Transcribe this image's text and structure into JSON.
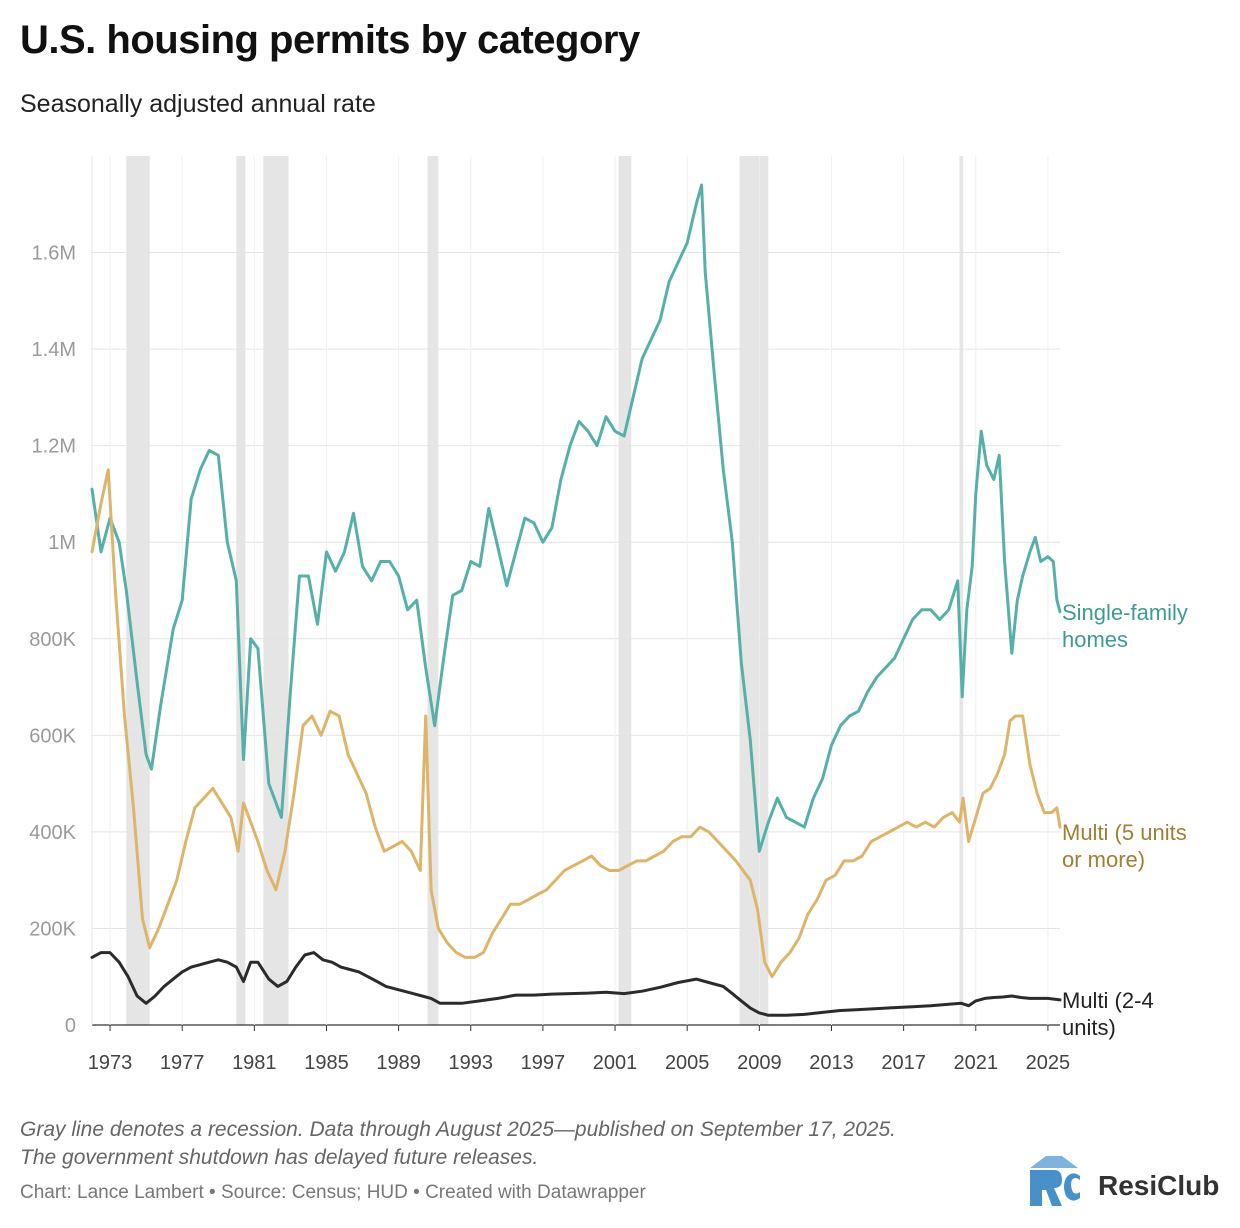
{
  "title": "U.S. housing permits by category",
  "subtitle": "Seasonally adjusted annual rate",
  "notes": [
    "Gray line denotes a recession. Data through August 2025—published on September 17, 2025.",
    "The government shutdown has delayed future releases."
  ],
  "credits": "Chart: Lance Lambert • Source: Census; HUD • Created with Datawrapper",
  "logo": {
    "text": "ResiClub",
    "icon": "resiclub-logo-icon",
    "color": "#4a90c8"
  },
  "colors": {
    "single": "#57b0a8",
    "multi5": "#dcb56b",
    "multi24": "#2b2b2b",
    "recession": "#e5e5e5",
    "grid": "#e4e4e4"
  },
  "chart_data": {
    "type": "line",
    "title": "U.S. housing permits by category",
    "subtitle": "Seasonally adjusted annual rate",
    "xlim": [
      1972,
      2025.67
    ],
    "ylim": [
      0,
      1800000
    ],
    "yticks": [
      0,
      200000,
      400000,
      600000,
      800000,
      1000000,
      1200000,
      1400000,
      1600000
    ],
    "ytick_labels": [
      "0",
      "200K",
      "400K",
      "600K",
      "800K",
      "1M",
      "1.2M",
      "1.4M",
      "1.6M"
    ],
    "xticks": [
      1973,
      1977,
      1981,
      1985,
      1989,
      1993,
      1997,
      2001,
      2005,
      2009,
      2013,
      2017,
      2021,
      2025
    ],
    "xtick_labels": [
      "1973",
      "1977",
      "1981",
      "1985",
      "1989",
      "1993",
      "1997",
      "2001",
      "2005",
      "2009",
      "2013",
      "2017",
      "2021",
      "2025"
    ],
    "grid": true,
    "recessions": [
      [
        1973.9,
        1975.2
      ],
      [
        1980.0,
        1980.5
      ],
      [
        1981.5,
        1982.9
      ],
      [
        1990.6,
        1991.2
      ],
      [
        2001.2,
        2001.9
      ],
      [
        2007.9,
        2009.5
      ],
      [
        2020.1,
        2020.3
      ]
    ],
    "series": [
      {
        "name": "Single-family homes",
        "label_lines": [
          "Single-family",
          "homes"
        ],
        "color": "#57b0a8",
        "label_color": "#3e9b92",
        "x": [
          1972.0,
          1972.5,
          1973.0,
          1973.5,
          1973.9,
          1974.5,
          1975.0,
          1975.3,
          1975.8,
          1976.5,
          1977.0,
          1977.5,
          1978.0,
          1978.5,
          1979.0,
          1979.5,
          1980.0,
          1980.4,
          1980.8,
          1981.2,
          1981.8,
          1982.5,
          1983.0,
          1983.5,
          1984.0,
          1984.5,
          1985.0,
          1985.5,
          1986.0,
          1986.5,
          1987.0,
          1987.5,
          1988.0,
          1988.5,
          1989.0,
          1989.5,
          1990.0,
          1990.5,
          1991.0,
          1991.5,
          1992.0,
          1992.5,
          1993.0,
          1993.5,
          1994.0,
          1994.5,
          1995.0,
          1995.5,
          1996.0,
          1996.5,
          1997.0,
          1997.5,
          1998.0,
          1998.5,
          1999.0,
          1999.5,
          2000.0,
          2000.5,
          2001.0,
          2001.5,
          2002.0,
          2002.5,
          2003.0,
          2003.5,
          2004.0,
          2004.5,
          2005.0,
          2005.5,
          2005.8,
          2006.0,
          2006.5,
          2007.0,
          2007.5,
          2008.0,
          2008.5,
          2009.0,
          2009.5,
          2010.0,
          2010.5,
          2011.0,
          2011.5,
          2012.0,
          2012.5,
          2013.0,
          2013.5,
          2014.0,
          2014.5,
          2015.0,
          2015.5,
          2016.0,
          2016.5,
          2017.0,
          2017.5,
          2018.0,
          2018.5,
          2019.0,
          2019.5,
          2020.0,
          2020.25,
          2020.5,
          2020.8,
          2021.0,
          2021.3,
          2021.6,
          2022.0,
          2022.3,
          2022.6,
          2023.0,
          2023.3,
          2023.6,
          2024.0,
          2024.3,
          2024.6,
          2025.0,
          2025.3,
          2025.5,
          2025.67
        ],
        "values": [
          1110000,
          980000,
          1050000,
          1000000,
          900000,
          710000,
          560000,
          530000,
          660000,
          820000,
          880000,
          1090000,
          1150000,
          1190000,
          1180000,
          1000000,
          920000,
          550000,
          800000,
          780000,
          500000,
          430000,
          690000,
          930000,
          930000,
          830000,
          980000,
          940000,
          980000,
          1060000,
          950000,
          920000,
          960000,
          960000,
          930000,
          860000,
          880000,
          740000,
          620000,
          760000,
          890000,
          900000,
          960000,
          950000,
          1070000,
          990000,
          910000,
          980000,
          1050000,
          1040000,
          1000000,
          1030000,
          1130000,
          1200000,
          1250000,
          1230000,
          1200000,
          1260000,
          1230000,
          1220000,
          1300000,
          1380000,
          1420000,
          1460000,
          1540000,
          1580000,
          1620000,
          1700000,
          1740000,
          1560000,
          1350000,
          1150000,
          1000000,
          750000,
          590000,
          360000,
          420000,
          470000,
          430000,
          420000,
          410000,
          470000,
          510000,
          580000,
          620000,
          640000,
          650000,
          690000,
          720000,
          740000,
          760000,
          800000,
          840000,
          860000,
          860000,
          840000,
          860000,
          920000,
          680000,
          860000,
          950000,
          1100000,
          1230000,
          1160000,
          1130000,
          1180000,
          960000,
          770000,
          880000,
          930000,
          980000,
          1010000,
          960000,
          970000,
          960000,
          880000,
          856000
        ]
      },
      {
        "name": "Multi (5 units or more)",
        "label_lines": [
          "Multi (5 units",
          "or more)"
        ],
        "color": "#dcb56b",
        "label_color": "#a07f34",
        "x": [
          1972.0,
          1972.5,
          1972.9,
          1973.3,
          1973.8,
          1974.3,
          1974.8,
          1975.2,
          1975.7,
          1976.2,
          1976.7,
          1977.2,
          1977.7,
          1978.2,
          1978.7,
          1979.2,
          1979.7,
          1980.1,
          1980.4,
          1980.8,
          1981.2,
          1981.7,
          1982.2,
          1982.7,
          1983.2,
          1983.7,
          1984.2,
          1984.7,
          1985.2,
          1985.7,
          1986.2,
          1986.7,
          1987.2,
          1987.7,
          1988.2,
          1988.7,
          1989.2,
          1989.7,
          1990.2,
          1990.5,
          1990.8,
          1991.2,
          1991.7,
          1992.2,
          1992.7,
          1993.2,
          1993.7,
          1994.2,
          1994.7,
          1995.2,
          1995.7,
          1996.2,
          1996.7,
          1997.2,
          1997.7,
          1998.2,
          1998.7,
          1999.2,
          1999.7,
          2000.2,
          2000.7,
          2001.2,
          2001.7,
          2002.2,
          2002.7,
          2003.2,
          2003.7,
          2004.2,
          2004.7,
          2005.2,
          2005.7,
          2006.2,
          2006.7,
          2007.2,
          2007.7,
          2008.1,
          2008.5,
          2008.9,
          2009.3,
          2009.7,
          2010.2,
          2010.7,
          2011.2,
          2011.7,
          2012.2,
          2012.7,
          2013.2,
          2013.7,
          2014.2,
          2014.7,
          2015.2,
          2015.7,
          2016.2,
          2016.7,
          2017.2,
          2017.7,
          2018.2,
          2018.7,
          2019.2,
          2019.7,
          2020.1,
          2020.3,
          2020.6,
          2021.0,
          2021.4,
          2021.8,
          2022.2,
          2022.6,
          2022.9,
          2023.2,
          2023.6,
          2024.0,
          2024.4,
          2024.8,
          2025.2,
          2025.5,
          2025.67
        ],
        "values": [
          980000,
          1080000,
          1150000,
          900000,
          640000,
          450000,
          220000,
          160000,
          200000,
          250000,
          300000,
          380000,
          450000,
          470000,
          490000,
          460000,
          430000,
          360000,
          460000,
          420000,
          380000,
          320000,
          280000,
          360000,
          480000,
          620000,
          640000,
          600000,
          650000,
          640000,
          560000,
          520000,
          480000,
          410000,
          360000,
          370000,
          380000,
          360000,
          320000,
          640000,
          280000,
          200000,
          170000,
          150000,
          140000,
          140000,
          150000,
          190000,
          220000,
          250000,
          250000,
          260000,
          270000,
          280000,
          300000,
          320000,
          330000,
          340000,
          350000,
          330000,
          320000,
          320000,
          330000,
          340000,
          340000,
          350000,
          360000,
          380000,
          390000,
          390000,
          410000,
          400000,
          380000,
          360000,
          340000,
          320000,
          300000,
          240000,
          130000,
          100000,
          130000,
          150000,
          180000,
          230000,
          260000,
          300000,
          310000,
          340000,
          340000,
          350000,
          380000,
          390000,
          400000,
          410000,
          420000,
          410000,
          420000,
          410000,
          430000,
          440000,
          420000,
          470000,
          380000,
          430000,
          480000,
          490000,
          520000,
          560000,
          630000,
          640000,
          640000,
          540000,
          480000,
          440000,
          440000,
          450000,
          410000
        ]
      },
      {
        "name": "Multi (2-4 units)",
        "label_lines": [
          "Multi (2-4",
          "units)"
        ],
        "color": "#2b2b2b",
        "label_color": "#222222",
        "x": [
          1972.0,
          1972.5,
          1973.0,
          1973.5,
          1974.0,
          1974.5,
          1975.0,
          1975.5,
          1976.0,
          1976.5,
          1977.0,
          1977.5,
          1978.0,
          1978.5,
          1979.0,
          1979.5,
          1980.0,
          1980.4,
          1980.8,
          1981.2,
          1981.8,
          1982.3,
          1982.8,
          1983.3,
          1983.8,
          1984.3,
          1984.8,
          1985.3,
          1985.8,
          1986.3,
          1986.8,
          1987.3,
          1987.8,
          1988.3,
          1988.8,
          1989.3,
          1989.8,
          1990.3,
          1990.8,
          1991.3,
          1991.8,
          1992.5,
          1993.5,
          1994.5,
          1995.5,
          1996.5,
          1997.5,
          1998.5,
          1999.5,
          2000.5,
          2001.5,
          2002.5,
          2003.5,
          2004.5,
          2005.5,
          2006.5,
          2007.0,
          2007.5,
          2008.0,
          2008.5,
          2009.0,
          2009.5,
          2010.5,
          2011.5,
          2012.5,
          2013.5,
          2014.5,
          2015.5,
          2016.5,
          2017.5,
          2018.5,
          2019.5,
          2020.2,
          2020.6,
          2021.0,
          2021.5,
          2022.0,
          2022.5,
          2023.0,
          2023.5,
          2024.0,
          2024.5,
          2025.0,
          2025.67
        ],
        "values": [
          140000,
          150000,
          150000,
          130000,
          100000,
          60000,
          45000,
          60000,
          80000,
          95000,
          110000,
          120000,
          125000,
          130000,
          135000,
          130000,
          120000,
          90000,
          130000,
          130000,
          95000,
          80000,
          90000,
          120000,
          145000,
          150000,
          135000,
          130000,
          120000,
          115000,
          110000,
          100000,
          90000,
          80000,
          75000,
          70000,
          65000,
          60000,
          55000,
          45000,
          45000,
          45000,
          50000,
          55000,
          62000,
          62000,
          64000,
          65000,
          66000,
          68000,
          65000,
          70000,
          78000,
          88000,
          95000,
          85000,
          80000,
          65000,
          50000,
          35000,
          25000,
          20000,
          20000,
          22000,
          26000,
          30000,
          32000,
          34000,
          36000,
          38000,
          40000,
          43000,
          45000,
          40000,
          50000,
          55000,
          57000,
          58000,
          60000,
          57000,
          55000,
          55000,
          55000,
          52000
        ]
      }
    ]
  }
}
